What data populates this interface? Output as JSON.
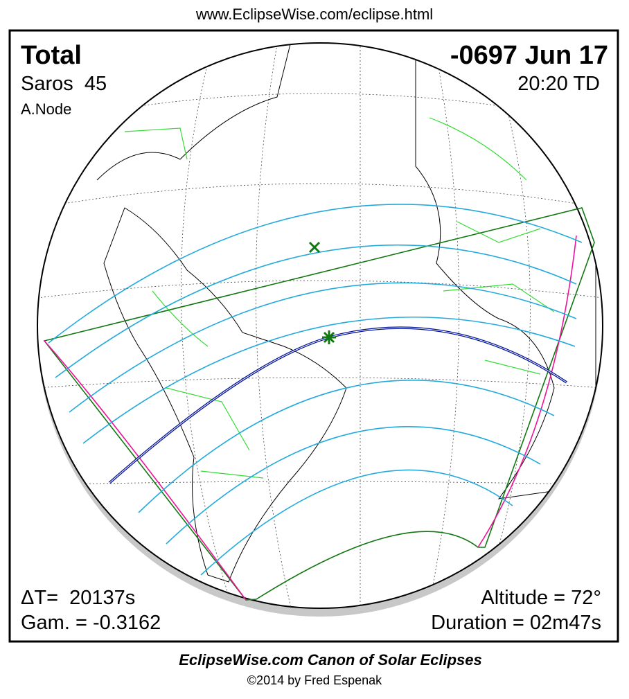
{
  "header": {
    "url": "www.EclipseWise.com/eclipse.html"
  },
  "panel": {
    "eclipse_type": "Total",
    "saros": "Saros  45",
    "node": "A.Node",
    "date": "-0697 Jun 17",
    "time": "20:20 TD",
    "delta_t": "ΔT=  20137s",
    "gamma": "Gam. = -0.3162",
    "altitude": "Altitude = 72°",
    "duration": "Duration = 02m47s"
  },
  "footer": {
    "title": "EclipseWise.com Canon of Solar Eclipses",
    "copyright": "©2014 by Fred Espenak"
  }
}
